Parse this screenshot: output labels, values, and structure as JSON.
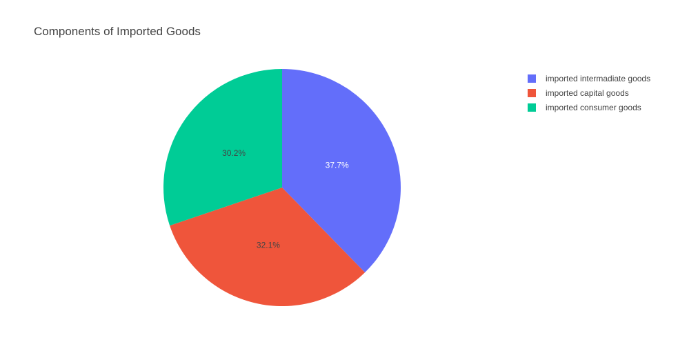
{
  "chart_data": {
    "type": "pie",
    "title": "Components of Imported Goods",
    "categories": [
      "imported intermadiate goods",
      "imported capital goods",
      "imported consumer goods"
    ],
    "values": [
      37.7,
      32.1,
      30.2
    ],
    "value_labels": [
      "37.7%",
      "32.1%",
      "30.2%"
    ],
    "colors": [
      "#636efa",
      "#ef553b",
      "#00cc96"
    ],
    "label_colors": [
      "#ffffff",
      "#444444",
      "#444444"
    ],
    "direction": "clockwise",
    "start_angle": "top",
    "legend_position": "top-right"
  }
}
